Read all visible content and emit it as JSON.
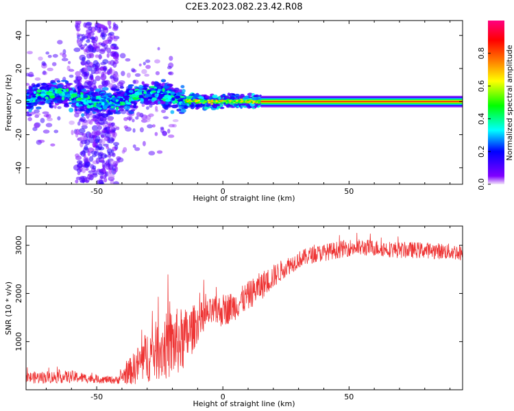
{
  "title": "C2E3.2023.082.23.42.R08",
  "chart_data": [
    {
      "type": "heatmap",
      "xlabel": "Height of straight line (km)",
      "ylabel": "Frequency (Hz)",
      "xlim": [
        -78,
        95
      ],
      "ylim": [
        -50,
        49
      ],
      "xticks": [
        -50,
        0,
        50
      ],
      "yticks": [
        -40,
        -20,
        0,
        20,
        40
      ],
      "xtick_labels": [
        "-50",
        "0",
        "50"
      ],
      "ytick_labels": [
        "-40",
        "-20",
        "0",
        "20",
        "40"
      ],
      "grid": false,
      "colorbar": {
        "label": "Normalized spectral amplitude",
        "range": [
          0,
          1
        ],
        "ticks": [
          0.0,
          0.2,
          0.4,
          0.6,
          0.8
        ],
        "tick_labels": [
          "0.0",
          "0.2",
          "0.4",
          "0.6",
          "0.8"
        ],
        "colormap": [
          "#f2e6fa",
          "#8000ff",
          "#0000ff",
          "#00ffff",
          "#00ff00",
          "#ffff00",
          "#ff8000",
          "#ff0000",
          "#ff0080"
        ]
      },
      "features": [
        {
          "name": "narrowband-line",
          "x_range": [
            15,
            95
          ],
          "center_freq": 0,
          "peak_amplitude": 0.85
        },
        {
          "name": "dispersed-band",
          "x_range": [
            -78,
            -15
          ],
          "center_freq": 2,
          "peak_amplitude": 0.45
        },
        {
          "name": "transition-band",
          "x_range": [
            -15,
            15
          ],
          "center_freq": 0,
          "peak_amplitude": 0.7
        },
        {
          "name": "vertical-scatter",
          "x_range": [
            -58,
            -42
          ],
          "freq_range": [
            -50,
            49
          ],
          "peak_amplitude": 0.15
        }
      ]
    },
    {
      "type": "line",
      "xlabel": "Height of straight line (km)",
      "ylabel": "SNR (10 * v/v)",
      "xlim": [
        -78,
        95
      ],
      "ylim": [
        0,
        3400
      ],
      "xticks": [
        -50,
        0,
        50
      ],
      "yticks": [
        1000,
        2000,
        3000
      ],
      "xtick_labels": [
        "-50",
        "0",
        "50"
      ],
      "ytick_labels": [
        "1000",
        "2000",
        "3000"
      ],
      "grid": false,
      "line_color": "#ee3333",
      "trend": {
        "x": [
          -78,
          -70,
          -60,
          -50,
          -42,
          -35,
          -30,
          -25,
          -20,
          -15,
          -10,
          -5,
          0,
          5,
          10,
          15,
          20,
          25,
          30,
          35,
          40,
          45,
          50,
          55,
          60,
          70,
          80,
          95
        ],
        "y": [
          250,
          260,
          270,
          220,
          200,
          450,
          700,
          850,
          950,
          1050,
          1400,
          1600,
          1650,
          1750,
          1950,
          2150,
          2350,
          2550,
          2700,
          2800,
          2850,
          2900,
          2950,
          2950,
          2950,
          2900,
          2900,
          2850
        ],
        "noise": [
          120,
          130,
          130,
          80,
          80,
          350,
          550,
          650,
          750,
          650,
          400,
          300,
          350,
          300,
          300,
          300,
          250,
          200,
          180,
          180,
          180,
          180,
          180,
          180,
          170,
          170,
          170,
          170
        ]
      }
    }
  ]
}
